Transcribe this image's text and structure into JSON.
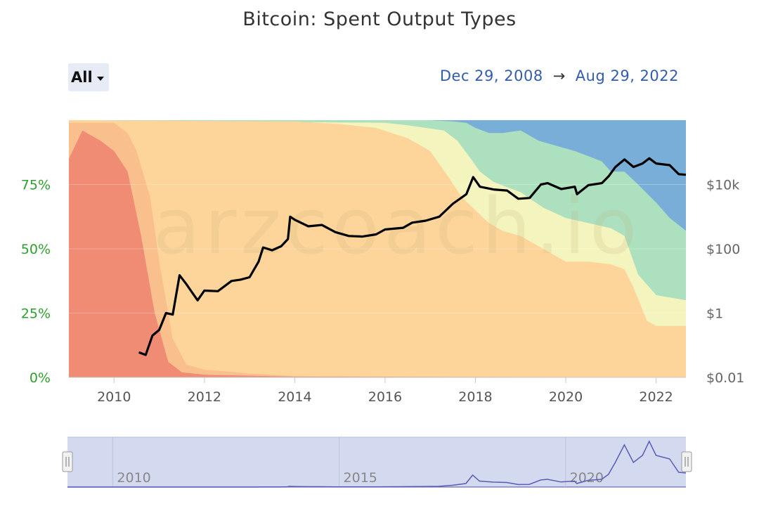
{
  "header": {
    "title": "Bitcoin: Spent Output Types",
    "range_button": "All",
    "date_from": "Dec 29, 2008",
    "date_arrow": "→",
    "date_to": "Aug 29, 2022"
  },
  "watermark": "arzcoach.io",
  "navigator": {
    "labels": [
      "2010",
      "2015",
      "2020"
    ]
  },
  "colors": {
    "red": "#f08c74",
    "peach": "#f9c08e",
    "orange_base": "#fdd59b",
    "light_yellow": "#f4f4be",
    "green": "#ade0bf",
    "blue": "#79aed8",
    "price_line": "#000000",
    "left_axis": "#2ca02c",
    "nav_fill": "#d3d9ee",
    "nav_line": "#5b5bb5"
  },
  "chart_data": {
    "type": "area",
    "xlim": [
      2009.0,
      2022.66
    ],
    "x_ticks": [
      "2010",
      "2012",
      "2014",
      "2016",
      "2018",
      "2020",
      "2022"
    ],
    "left_axis": {
      "ticks": [
        "0%",
        "25%",
        "50%",
        "75%"
      ],
      "values": [
        0,
        25,
        50,
        75
      ],
      "ylim": [
        0,
        100
      ]
    },
    "right_axis": {
      "scale": "log",
      "ticks": [
        "$0.01",
        "$1",
        "$100",
        "$10k"
      ],
      "values": [
        0.01,
        1,
        100,
        10000
      ],
      "ylim": [
        0.01,
        1000000
      ]
    },
    "series_stack_percent": [
      {
        "color": "red",
        "points": [
          [
            2009.0,
            85
          ],
          [
            2009.3,
            96
          ],
          [
            2009.7,
            92
          ],
          [
            2010.0,
            88
          ],
          [
            2010.3,
            80
          ],
          [
            2010.6,
            55
          ],
          [
            2010.9,
            25
          ],
          [
            2011.2,
            6
          ],
          [
            2011.5,
            2
          ],
          [
            2012.0,
            1
          ],
          [
            2014.0,
            0.3
          ],
          [
            2022.66,
            0
          ]
        ]
      },
      {
        "color": "peach",
        "points": [
          [
            2009.0,
            99
          ],
          [
            2009.5,
            99
          ],
          [
            2010.0,
            99
          ],
          [
            2010.3,
            95
          ],
          [
            2010.5,
            88
          ],
          [
            2010.8,
            70
          ],
          [
            2011.0,
            45
          ],
          [
            2011.3,
            15
          ],
          [
            2011.6,
            5
          ],
          [
            2012.0,
            3
          ],
          [
            2013.0,
            1.5
          ],
          [
            2014.0,
            0.5
          ],
          [
            2022.66,
            0
          ]
        ]
      },
      {
        "color": "orange_base",
        "points": [
          [
            2009.0,
            100
          ],
          [
            2014.0,
            99.5
          ],
          [
            2015.0,
            98.5
          ],
          [
            2015.8,
            97
          ],
          [
            2016.5,
            93
          ],
          [
            2017.0,
            88
          ],
          [
            2017.4,
            78
          ],
          [
            2017.7,
            70
          ],
          [
            2018.0,
            65
          ],
          [
            2018.3,
            60
          ],
          [
            2018.6,
            57
          ],
          [
            2019.0,
            55
          ],
          [
            2019.5,
            50
          ],
          [
            2020.0,
            45
          ],
          [
            2020.5,
            45
          ],
          [
            2021.0,
            44
          ],
          [
            2021.3,
            42
          ],
          [
            2021.5,
            35
          ],
          [
            2021.8,
            22
          ],
          [
            2022.0,
            20
          ],
          [
            2022.66,
            20
          ]
        ]
      },
      {
        "color": "light_yellow",
        "points": [
          [
            2009.0,
            100
          ],
          [
            2016.0,
            99
          ],
          [
            2016.5,
            98
          ],
          [
            2016.9,
            97
          ],
          [
            2017.3,
            96
          ],
          [
            2017.6,
            92
          ],
          [
            2017.9,
            85
          ],
          [
            2018.1,
            80
          ],
          [
            2018.4,
            76
          ],
          [
            2018.7,
            74
          ],
          [
            2019.0,
            72
          ],
          [
            2019.5,
            66
          ],
          [
            2020.0,
            62
          ],
          [
            2020.5,
            60
          ],
          [
            2021.0,
            58
          ],
          [
            2021.3,
            55
          ],
          [
            2021.6,
            40
          ],
          [
            2022.0,
            32
          ],
          [
            2022.66,
            30
          ]
        ]
      },
      {
        "color": "green",
        "points": [
          [
            2009.0,
            100
          ],
          [
            2016.0,
            100
          ],
          [
            2017.0,
            100
          ],
          [
            2017.5,
            99.5
          ],
          [
            2017.8,
            99
          ],
          [
            2018.0,
            97
          ],
          [
            2018.3,
            95
          ],
          [
            2018.6,
            95
          ],
          [
            2019.0,
            96
          ],
          [
            2019.4,
            92
          ],
          [
            2019.8,
            90
          ],
          [
            2020.2,
            88
          ],
          [
            2020.5,
            86
          ],
          [
            2020.8,
            84
          ],
          [
            2021.0,
            80
          ],
          [
            2021.3,
            80
          ],
          [
            2021.6,
            75
          ],
          [
            2022.0,
            68
          ],
          [
            2022.3,
            62
          ],
          [
            2022.66,
            57
          ]
        ]
      },
      {
        "color": "blue",
        "points": [
          [
            2009.0,
            100
          ],
          [
            2022.66,
            100
          ]
        ]
      }
    ],
    "price_series": {
      "color": "price_line",
      "points": [
        [
          2010.55,
          0.06
        ],
        [
          2010.7,
          0.05
        ],
        [
          2010.85,
          0.2
        ],
        [
          2011.0,
          0.3
        ],
        [
          2011.15,
          1.0
        ],
        [
          2011.3,
          0.9
        ],
        [
          2011.45,
          15
        ],
        [
          2011.6,
          8
        ],
        [
          2011.7,
          5
        ],
        [
          2011.85,
          2.5
        ],
        [
          2012.0,
          5
        ],
        [
          2012.3,
          4.8
        ],
        [
          2012.6,
          10
        ],
        [
          2012.8,
          11
        ],
        [
          2013.0,
          13
        ],
        [
          2013.2,
          40
        ],
        [
          2013.3,
          110
        ],
        [
          2013.5,
          90
        ],
        [
          2013.7,
          120
        ],
        [
          2013.85,
          200
        ],
        [
          2013.9,
          1000
        ],
        [
          2014.0,
          800
        ],
        [
          2014.3,
          500
        ],
        [
          2014.6,
          550
        ],
        [
          2014.9,
          330
        ],
        [
          2015.2,
          250
        ],
        [
          2015.5,
          240
        ],
        [
          2015.8,
          280
        ],
        [
          2016.0,
          400
        ],
        [
          2016.4,
          450
        ],
        [
          2016.6,
          650
        ],
        [
          2016.9,
          750
        ],
        [
          2017.2,
          1000
        ],
        [
          2017.5,
          2500
        ],
        [
          2017.8,
          5000
        ],
        [
          2017.95,
          17000
        ],
        [
          2018.1,
          8500
        ],
        [
          2018.4,
          7000
        ],
        [
          2018.7,
          6500
        ],
        [
          2018.95,
          3600
        ],
        [
          2019.2,
          3800
        ],
        [
          2019.45,
          10000
        ],
        [
          2019.6,
          11000
        ],
        [
          2019.9,
          7200
        ],
        [
          2020.2,
          8500
        ],
        [
          2020.25,
          5000
        ],
        [
          2020.5,
          9500
        ],
        [
          2020.8,
          11000
        ],
        [
          2020.95,
          18000
        ],
        [
          2021.1,
          35000
        ],
        [
          2021.3,
          60000
        ],
        [
          2021.5,
          35000
        ],
        [
          2021.7,
          45000
        ],
        [
          2021.85,
          65000
        ],
        [
          2022.0,
          45000
        ],
        [
          2022.3,
          40000
        ],
        [
          2022.5,
          21000
        ],
        [
          2022.66,
          20000
        ]
      ]
    }
  }
}
